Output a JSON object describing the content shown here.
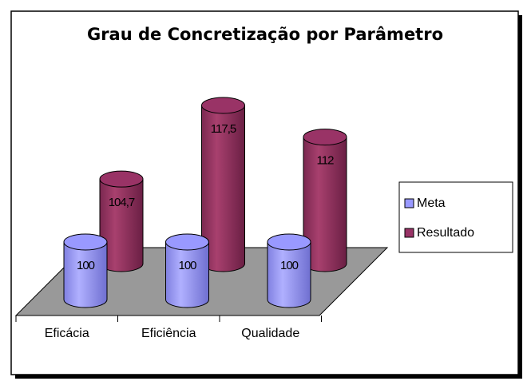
{
  "chart_data": {
    "type": "bar3d",
    "title": "Grau de Concretização por Parâmetro",
    "categories": [
      "Eficácia",
      "Eficiência",
      "Qualidade"
    ],
    "series": [
      {
        "name": "Meta",
        "color": "#9999ff",
        "values": [
          100,
          100,
          100
        ]
      },
      {
        "name": "Resultado",
        "color": "#993366",
        "values": [
          104.7,
          117.5,
          112
        ],
        "value_labels": [
          "104,7",
          "117,5",
          "112"
        ]
      }
    ],
    "ylim": [
      90,
      120
    ],
    "legend": "right"
  }
}
